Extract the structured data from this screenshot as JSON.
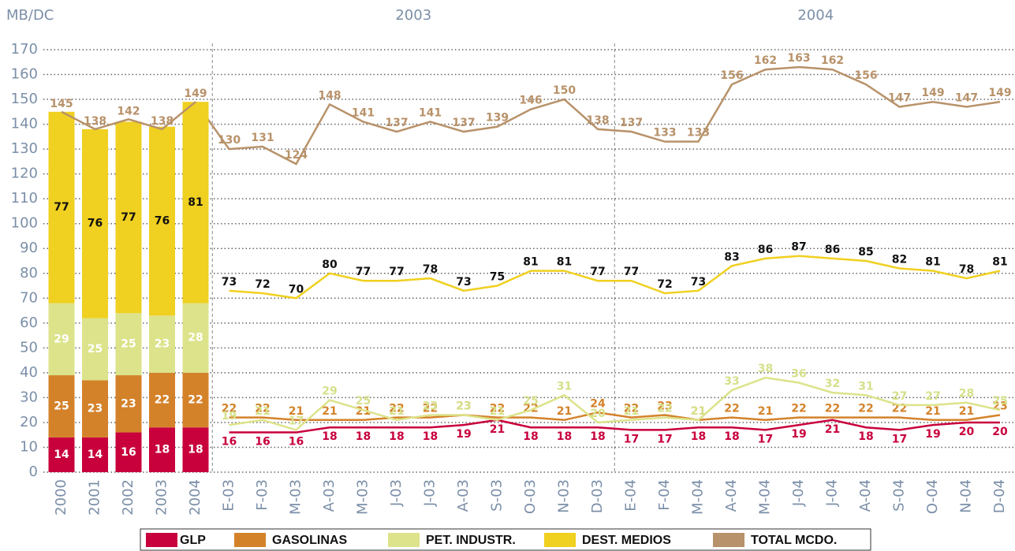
{
  "chart_data": [
    {
      "type": "bar",
      "stacked": true,
      "y_label": "MB/DC",
      "ylim": [
        0,
        170
      ],
      "yticks": [
        0,
        10,
        20,
        30,
        40,
        50,
        60,
        70,
        80,
        90,
        100,
        110,
        120,
        130,
        140,
        150,
        160,
        170
      ],
      "grid": true,
      "categories": [
        "2000",
        "2001",
        "2002",
        "2003",
        "2004"
      ],
      "series": [
        {
          "color": "#c8003c",
          "values": [
            14,
            14,
            16,
            18,
            18
          ]
        },
        {
          "color": "#d4822a",
          "values": [
            25,
            23,
            23,
            22,
            22
          ]
        },
        {
          "color": "#dce38a",
          "values": [
            29,
            25,
            25,
            23,
            28
          ]
        },
        {
          "color": "#f0d020",
          "values": [
            77,
            76,
            77,
            76,
            81
          ]
        },
        {
          "color": "#b8926a",
          "type": "line",
          "values": [
            145,
            138,
            142,
            138,
            149
          ]
        }
      ]
    },
    {
      "type": "line",
      "groups": [
        "2003",
        "2004"
      ],
      "categories": [
        "E-03",
        "F-03",
        "M-03",
        "A-03",
        "M-03",
        "J-03",
        "J-03",
        "A-03",
        "S-03",
        "O-03",
        "N-03",
        "D-03",
        "E-04",
        "F-04",
        "M-04",
        "A-04",
        "M-04",
        "J-04",
        "J-04",
        "A-04",
        "S-04",
        "O-04",
        "N-04",
        "D-04"
      ],
      "series": [
        {
          "name": "GLP",
          "color": "#c8003c",
          "values": [
            16,
            16,
            16,
            18,
            18,
            18,
            18,
            19,
            21,
            18,
            18,
            18,
            17,
            17,
            18,
            18,
            17,
            19,
            21,
            18,
            17,
            19,
            20,
            20
          ]
        },
        {
          "name": "GASOLINAS",
          "color": "#d4822a",
          "values": [
            22,
            22,
            21,
            21,
            21,
            22,
            22,
            23,
            22,
            22,
            21,
            24,
            22,
            23,
            21,
            22,
            21,
            22,
            22,
            22,
            22,
            21,
            21,
            23
          ]
        },
        {
          "name": "PET. INDUSTR.",
          "color": "#dce38a",
          "values": [
            19,
            21,
            17,
            29,
            25,
            21,
            23,
            23,
            21,
            25,
            31,
            20,
            21,
            22,
            21,
            33,
            38,
            36,
            32,
            31,
            27,
            27,
            28,
            25
          ]
        },
        {
          "name": "DEST. MEDIOS",
          "color": "#f0d020",
          "values": [
            73,
            72,
            70,
            80,
            77,
            77,
            78,
            73,
            75,
            81,
            81,
            77,
            77,
            72,
            73,
            83,
            86,
            87,
            86,
            85,
            82,
            81,
            78,
            81
          ]
        },
        {
          "name": "TOTAL MCDO.",
          "color": "#b8926a",
          "values": [
            130,
            131,
            124,
            148,
            141,
            137,
            141,
            137,
            139,
            146,
            150,
            138,
            137,
            133,
            133,
            156,
            162,
            163,
            162,
            156,
            147,
            149,
            147,
            149
          ]
        }
      ]
    }
  ]
}
